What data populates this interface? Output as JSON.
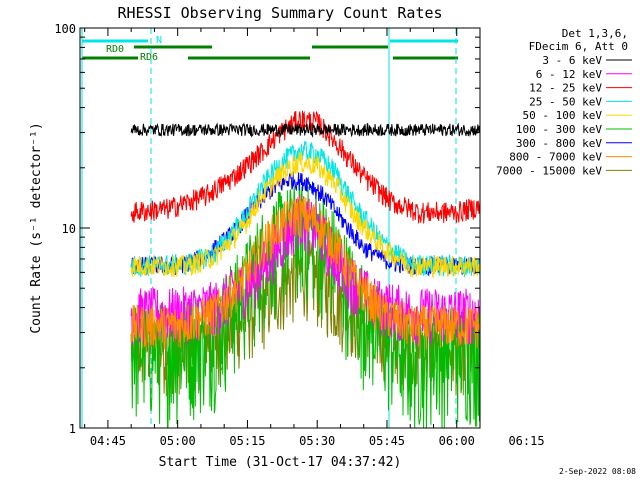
{
  "chart_data": {
    "type": "line",
    "title": "RHESSI Observing Summary Count Rates",
    "xlabel": "Start Time (31-Oct-17 04:37:42)",
    "ylabel": "Count Rate (s⁻¹ detector⁻¹)",
    "yscale": "log",
    "ylim": [
      1,
      100
    ],
    "xlim_minutes": [
      39,
      125
    ],
    "x_tick_labels": [
      {
        "minute": 45,
        "label": "04:45"
      },
      {
        "minute": 60,
        "label": "05:00"
      },
      {
        "minute": 75,
        "label": "05:15"
      },
      {
        "minute": 90,
        "label": "05:30"
      },
      {
        "minute": 105,
        "label": "05:45"
      },
      {
        "minute": 120,
        "label": "06:00"
      },
      {
        "minute": 135,
        "label": "06:15"
      }
    ],
    "y_tick_labels": [
      {
        "value": 1,
        "label": "1"
      },
      {
        "value": 10,
        "label": "10"
      },
      {
        "value": 100,
        "label": "100"
      }
    ],
    "legend_header": [
      "Det 1,3,6,",
      "FDecim 6, Att 0"
    ],
    "legend_position": "right",
    "data_time_range_minutes": [
      50,
      126
    ],
    "series": [
      {
        "name": "3 - 6 keV",
        "color": "#000000",
        "x": [
          50,
          60,
          70,
          80,
          86,
          92,
          100,
          110,
          120,
          126
        ],
        "y": [
          31,
          31,
          31,
          31,
          31,
          31,
          31,
          31,
          31,
          31
        ]
      },
      {
        "name": "6 - 12 keV",
        "color": "#ff00ff",
        "x": [
          50,
          60,
          68,
          76,
          82,
          86,
          90,
          96,
          102,
          110,
          120,
          126
        ],
        "y": [
          3.8,
          3.8,
          4.1,
          5.5,
          8.5,
          11.5,
          10.0,
          6.0,
          4.3,
          3.8,
          3.8,
          3.8
        ]
      },
      {
        "name": "12 - 25 keV",
        "color": "#ff0000",
        "x": [
          50,
          58,
          66,
          72,
          78,
          82,
          86,
          90,
          94,
          100,
          106,
          112,
          120,
          126
        ],
        "y": [
          12,
          12.5,
          14.5,
          18,
          24,
          30,
          35,
          34,
          27,
          18,
          13.5,
          12,
          12,
          13
        ]
      },
      {
        "name": "25 - 50 keV",
        "color": "#00e5e5",
        "x": [
          50,
          62,
          68,
          74,
          78,
          82,
          86,
          90,
          94,
          98,
          104,
          110,
          120,
          126
        ],
        "y": [
          6.5,
          6.6,
          7.5,
          11,
          16,
          21,
          24.5,
          23.5,
          19,
          13,
          8.5,
          6.6,
          6.5,
          6.5
        ]
      },
      {
        "name": "50 - 100 keV",
        "color": "#ffd700",
        "x": [
          50,
          62,
          68,
          74,
          78,
          82,
          86,
          90,
          94,
          98,
          104,
          110,
          120,
          126
        ],
        "y": [
          6.5,
          6.5,
          7.2,
          10,
          14.5,
          18.5,
          21.5,
          20.5,
          16.5,
          11.5,
          8,
          6.5,
          6.5,
          6.5
        ]
      },
      {
        "name": "100 - 300 keV",
        "color": "#00bb00",
        "x": [
          50,
          60,
          68,
          74,
          78,
          82,
          86,
          90,
          94,
          98,
          104,
          110,
          120,
          126
        ],
        "y": [
          2.6,
          2.6,
          3.2,
          5,
          7.5,
          9.5,
          10.5,
          9.8,
          7.5,
          4.8,
          3,
          2.3,
          2.6,
          2.6
        ]
      },
      {
        "name": "300 - 800 keV",
        "color": "#0000ff",
        "x": [
          50,
          60,
          66,
          72,
          76,
          80,
          84,
          88,
          92,
          96,
          100,
          106,
          112,
          120,
          126
        ],
        "y": [
          6.5,
          6.5,
          7.2,
          9.5,
          12.5,
          15.5,
          17.5,
          17,
          14,
          10.5,
          8,
          6.7,
          6.5,
          6.5,
          6.5
        ]
      },
      {
        "name": "800 - 7000 keV",
        "color": "#ff8c00",
        "x": [
          50,
          60,
          68,
          74,
          78,
          82,
          86,
          90,
          94,
          98,
          104,
          110,
          120,
          126
        ],
        "y": [
          3.3,
          3.3,
          3.8,
          5.5,
          8,
          10.5,
          12,
          10.8,
          8.2,
          5.5,
          3.8,
          3.3,
          3.3,
          3.3
        ]
      },
      {
        "name": "7000 - 15000 keV",
        "color": "#808000",
        "x": [
          50,
          60,
          70,
          78,
          84,
          88,
          92,
          100,
          110,
          120,
          126
        ],
        "y": [
          2.6,
          2.6,
          3.0,
          4.2,
          5.6,
          6.2,
          5.0,
          3.4,
          2.7,
          2.6,
          2.6
        ]
      }
    ],
    "annotations": [
      {
        "text": "N",
        "color": "#00e5e5"
      },
      {
        "text": "RD0",
        "color": "#008000"
      },
      {
        "text": "RD6",
        "color": "#008000"
      }
    ],
    "footer_text": "2-Sep-2022 08:08"
  }
}
